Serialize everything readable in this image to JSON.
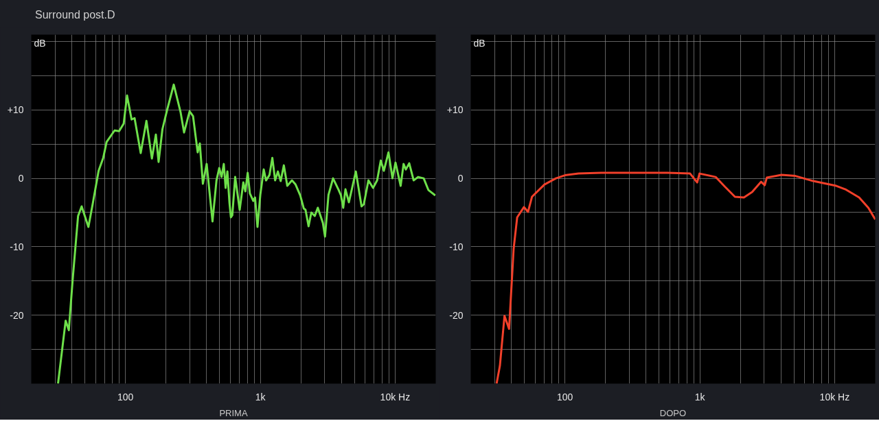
{
  "chart_data": [
    {
      "type": "line",
      "title": "Surround post.D",
      "xlabel": "PRIMA",
      "ylabel": "dB",
      "log": "x",
      "grid": true,
      "xlim": [
        20,
        20000
      ],
      "ylim": [
        -30,
        21
      ],
      "xticks": [
        {
          "value": 20,
          "label": null
        },
        {
          "value": 30,
          "label": null
        },
        {
          "value": 40,
          "label": null
        },
        {
          "value": 50,
          "label": null
        },
        {
          "value": 60,
          "label": null
        },
        {
          "value": 70,
          "label": null
        },
        {
          "value": 80,
          "label": null
        },
        {
          "value": 90,
          "label": null
        },
        100,
        {
          "value": 200,
          "label": null
        },
        {
          "value": 300,
          "label": null
        },
        {
          "value": 400,
          "label": null
        },
        {
          "value": 500,
          "label": null
        },
        {
          "value": 600,
          "label": null
        },
        {
          "value": 700,
          "label": null
        },
        {
          "value": 800,
          "label": null
        },
        {
          "value": 900,
          "label": null
        },
        {
          "value": 1000,
          "label": "1k"
        },
        {
          "value": 2000,
          "label": null
        },
        {
          "value": 3000,
          "label": null
        },
        {
          "value": 4000,
          "label": null
        },
        {
          "value": 5000,
          "label": null
        },
        {
          "value": 6000,
          "label": null
        },
        {
          "value": 7000,
          "label": null
        },
        {
          "value": 8000,
          "label": null
        },
        {
          "value": 9000,
          "label": null
        },
        {
          "value": 10000,
          "label": "10k Hz"
        },
        {
          "value": 20000,
          "label": null
        }
      ],
      "yticks": [
        {
          "value": -30,
          "label": null
        },
        {
          "value": -25,
          "label": null
        },
        -20,
        {
          "value": -15,
          "label": null
        },
        -10,
        {
          "value": -5,
          "label": null
        },
        0,
        {
          "value": 5,
          "label": null
        },
        {
          "value": 10,
          "label": "+10"
        },
        {
          "value": 15,
          "label": null
        },
        {
          "value": 20,
          "label": null
        }
      ],
      "series": [
        {
          "color": "#6ee04a",
          "x": [
            31.6,
            36,
            38,
            40.5,
            44.5,
            47.3,
            53.1,
            57.3,
            63.2,
            68.4,
            72.4,
            83,
            89.7,
            97,
            102.7,
            111,
            116.8,
            129.7,
            143,
            157,
            168,
            176,
            188,
            203,
            228,
            256,
            272,
            299,
            317,
            343,
            356,
            375,
            400,
            442,
            473,
            496,
            516,
            536,
            553,
            570,
            590,
            605,
            620,
            651,
            703,
            748,
            775,
            806,
            837,
            887,
            914,
            953,
            1000,
            1060,
            1103,
            1170,
            1228,
            1288,
            1350,
            1416,
            1495,
            1585,
            1717,
            1826,
            1979,
            2100,
            2164,
            2280,
            2390,
            2534,
            2670,
            2910,
            3020,
            3204,
            3464,
            3812,
            3966,
            4121,
            4281,
            4540,
            5112,
            5636,
            5857,
            6337,
            6860,
            7353,
            7826,
            8248,
            8930,
            9552,
            10065,
            10990,
            11550,
            12010,
            12720,
            13720,
            14800,
            16290,
            17640,
            19850
          ],
          "values": [
            -30,
            -20.8,
            -22.2,
            -15,
            -5.5,
            -4.1,
            -7.1,
            -3.6,
            1.1,
            3.0,
            5.3,
            7.0,
            6.9,
            8.0,
            12.1,
            8.6,
            8.8,
            3.7,
            8.4,
            2.9,
            6.4,
            2.4,
            7.2,
            9.9,
            13.7,
            9.7,
            6.7,
            9.8,
            9.1,
            3.8,
            5.1,
            -0.8,
            2.1,
            -6.3,
            -0.3,
            1.5,
            0.2,
            2.1,
            -1.4,
            1.0,
            -3.5,
            -5.7,
            -5.4,
            0.2,
            -4.6,
            -0.6,
            -1.9,
            0.8,
            -2.2,
            -3.3,
            -2.8,
            -7.1,
            -2.4,
            1.3,
            -0.3,
            0.5,
            3.0,
            -0.3,
            1.0,
            -0.4,
            1.9,
            -1.1,
            -0.3,
            -0.9,
            -2.5,
            -4.4,
            -4.6,
            -7.0,
            -5.0,
            -5.5,
            -4.3,
            -6.5,
            -8.5,
            -2.4,
            0.0,
            -1.7,
            -2.5,
            -4.3,
            -1.6,
            -3.5,
            1.0,
            -4.1,
            -3.8,
            -0.3,
            -1.4,
            -0.3,
            2.6,
            1.1,
            3.8,
            0.0,
            2.3,
            -1.1,
            2.1,
            1.3,
            2.2,
            -0.3,
            0.2,
            0.0,
            -1.7,
            -2.5
          ]
        }
      ]
    },
    {
      "type": "line",
      "xlabel": "DOPO",
      "ylabel": "dB",
      "log": "x",
      "grid": true,
      "xlim": [
        20,
        20000
      ],
      "ylim": [
        -30,
        21
      ],
      "xticks": [
        {
          "value": 20,
          "label": null
        },
        {
          "value": 30,
          "label": null
        },
        {
          "value": 40,
          "label": null
        },
        {
          "value": 50,
          "label": null
        },
        {
          "value": 60,
          "label": null
        },
        {
          "value": 70,
          "label": null
        },
        {
          "value": 80,
          "label": null
        },
        {
          "value": 90,
          "label": null
        },
        100,
        {
          "value": 200,
          "label": null
        },
        {
          "value": 300,
          "label": null
        },
        {
          "value": 400,
          "label": null
        },
        {
          "value": 500,
          "label": null
        },
        {
          "value": 600,
          "label": null
        },
        {
          "value": 700,
          "label": null
        },
        {
          "value": 800,
          "label": null
        },
        {
          "value": 900,
          "label": null
        },
        {
          "value": 1000,
          "label": "1k"
        },
        {
          "value": 2000,
          "label": null
        },
        {
          "value": 3000,
          "label": null
        },
        {
          "value": 4000,
          "label": null
        },
        {
          "value": 5000,
          "label": null
        },
        {
          "value": 6000,
          "label": null
        },
        {
          "value": 7000,
          "label": null
        },
        {
          "value": 8000,
          "label": null
        },
        {
          "value": 9000,
          "label": null
        },
        {
          "value": 10000,
          "label": "10k Hz"
        },
        {
          "value": 20000,
          "label": null
        }
      ],
      "yticks": [
        {
          "value": -30,
          "label": null
        },
        {
          "value": -25,
          "label": null
        },
        -20,
        {
          "value": -15,
          "label": null
        },
        -10,
        {
          "value": -5,
          "label": null
        },
        0,
        {
          "value": 5,
          "label": null
        },
        {
          "value": 10,
          "label": "+10"
        },
        {
          "value": 15,
          "label": null
        },
        {
          "value": 20,
          "label": null
        }
      ],
      "series": [
        {
          "color": "#f2402a",
          "x": [
            31.1,
            32.9,
            35.6,
            38.5,
            41.6,
            44.2,
            49.6,
            53.2,
            56.9,
            70.4,
            85.6,
            100,
            126,
            186,
            296,
            577,
            847,
            956,
            995,
            1310,
            1530,
            1821,
            2124,
            2445,
            2850,
            3029,
            3140,
            4035,
            5110,
            6945,
            10280,
            12000,
            15200,
            17780,
            20000
          ],
          "values": [
            -30,
            -27.4,
            -20.1,
            -22.0,
            -10.3,
            -5.7,
            -4.2,
            -4.9,
            -2.7,
            -0.9,
            0,
            0.45,
            0.7,
            0.8,
            0.8,
            0.8,
            0.7,
            -0.6,
            0.7,
            0.2,
            -1.2,
            -2.7,
            -2.8,
            -2.0,
            -0.5,
            -1.0,
            0.1,
            0.5,
            0.35,
            -0.4,
            -1.1,
            -1.6,
            -2.8,
            -4.3,
            -6.0
          ]
        }
      ]
    }
  ]
}
